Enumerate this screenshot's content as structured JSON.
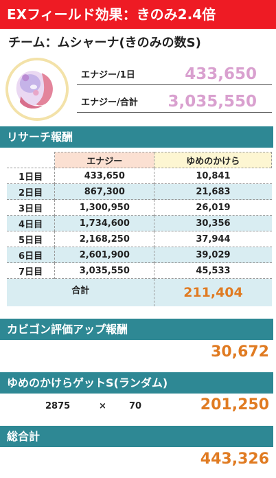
{
  "banner": {
    "text": "EXフィールド効果：きのみ2.4倍",
    "color": "#ee1b24"
  },
  "team": {
    "title": "チーム：ムシャーナ(きのみの数S)"
  },
  "energy": {
    "day_label": "エナジー/1日",
    "day_value": "433,650",
    "total_label": "エナジー/合計",
    "total_value": "3,035,550",
    "value_color": "#d9a0cf"
  },
  "research": {
    "title": "リサーチ報酬",
    "headers": [
      "",
      "エナジー",
      "ゆめのかけら"
    ],
    "rows": [
      {
        "day": "1日目",
        "energy": "433,650",
        "dream": "10,841"
      },
      {
        "day": "2日目",
        "energy": "867,300",
        "dream": "21,683"
      },
      {
        "day": "3日目",
        "energy": "1,300,950",
        "dream": "26,019"
      },
      {
        "day": "4日目",
        "energy": "1,734,600",
        "dream": "30,356"
      },
      {
        "day": "5日目",
        "energy": "2,168,250",
        "dream": "37,944"
      },
      {
        "day": "6日目",
        "energy": "2,601,900",
        "dream": "39,029"
      },
      {
        "day": "7日目",
        "energy": "3,035,550",
        "dream": "45,533"
      }
    ],
    "total_label": "合計",
    "total_value": "211,404"
  },
  "snorlax": {
    "title": "カビゴン評価アップ報酬",
    "value": "30,672"
  },
  "gacha": {
    "title": "ゆめのかけらゲットS(ランダム)",
    "base": "2875",
    "times": "×",
    "multiplier": "70",
    "value": "201,250"
  },
  "grand_total": {
    "title": "総合計",
    "value": "443,326"
  },
  "colors": {
    "section_bar": "#2e8894",
    "accent_orange": "#e07b22",
    "row_alt": "#d9edf2"
  },
  "icons": {
    "avatar": "munna-pokemon-icon"
  }
}
